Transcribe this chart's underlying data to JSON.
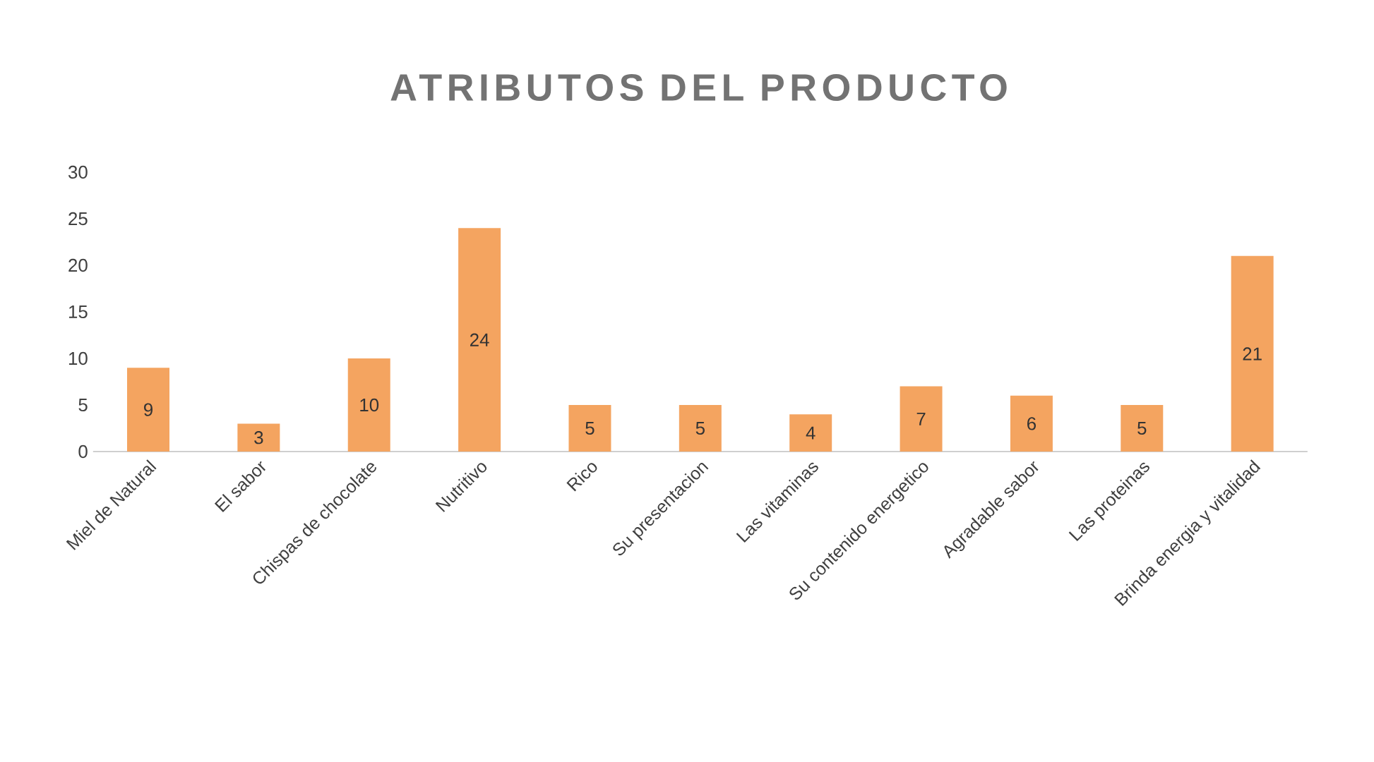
{
  "chart_data": {
    "type": "bar",
    "title": "ATRIBUTOS DEL PRODUCTO",
    "categories": [
      "Miel de Natural",
      "El sabor",
      "Chispas de chocolate",
      "Nutritivo",
      "Rico",
      "Su presentacion",
      "Las vitaminas",
      "Su contenido energetico",
      "Agradable sabor",
      "Las proteinas",
      "Brinda energia y vitalidad"
    ],
    "values": [
      9,
      3,
      10,
      24,
      5,
      5,
      4,
      7,
      6,
      5,
      21
    ],
    "color": "#f4a460",
    "ylim": [
      0,
      30
    ],
    "yticks": [
      0,
      5,
      10,
      15,
      20,
      25,
      30
    ],
    "grid": false,
    "data_labels": true
  }
}
